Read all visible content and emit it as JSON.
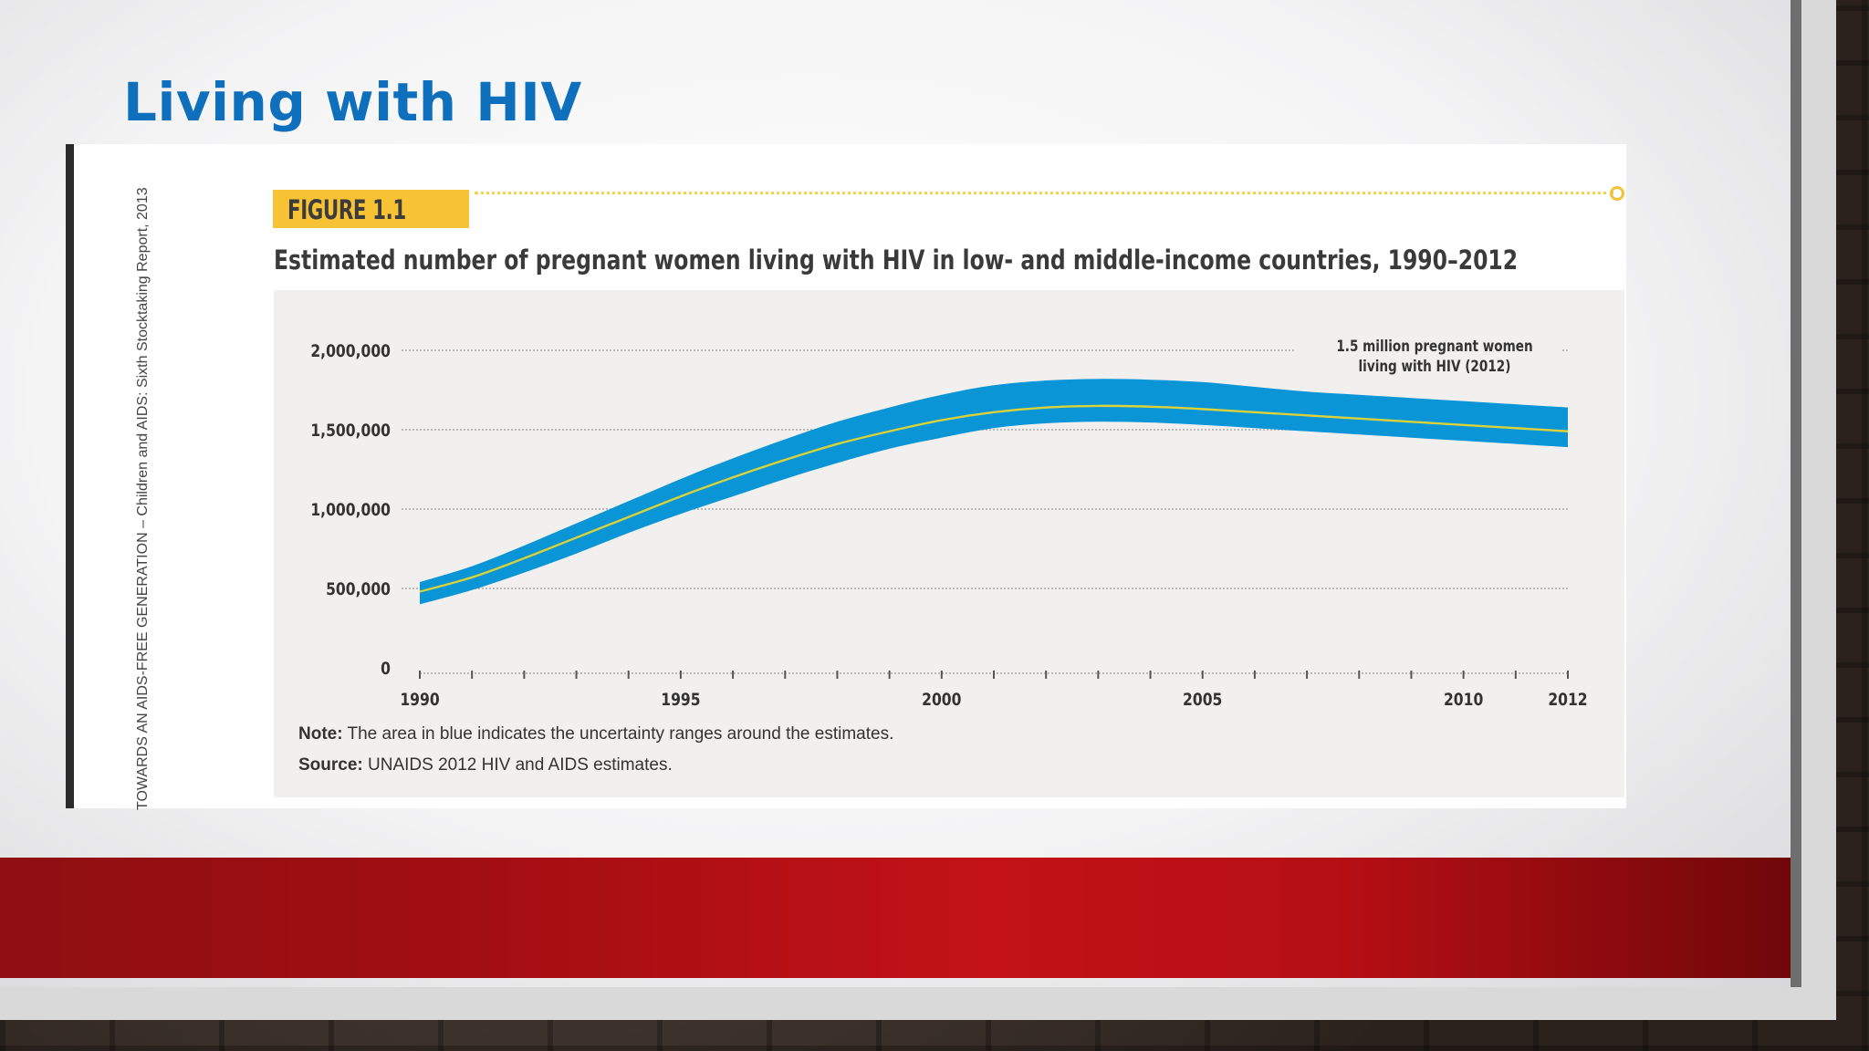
{
  "slide": {
    "title": "Living with HIV"
  },
  "figure": {
    "badge": "FIGURE 1.1",
    "title": "Estimated number of pregnant women living with HIV in low- and middle-income countries, 1990–2012",
    "side_text": "TOWARDS AN AIDS-FREE GENERATION – Children and AIDS: Sixth Stocktaking Report, 2013",
    "note_label": "Note:",
    "note_text": " The area in blue indicates the uncertainty ranges around the estimates.",
    "source_label": "Source:",
    "source_text": " UNAIDS 2012 HIV and AIDS estimates."
  },
  "colors": {
    "band": "#0a96d6",
    "estimate_line": "#d9d23a",
    "title_blue": "#0e6fbd"
  },
  "chart_data": {
    "type": "area",
    "title": "Estimated number of pregnant women living with HIV in low- and middle-income countries, 1990–2012",
    "xlabel": "",
    "ylabel": "",
    "xlim": [
      1990,
      2012
    ],
    "ylim": [
      0,
      2000000
    ],
    "grid": true,
    "x_ticks": [
      "1990",
      "1995",
      "2000",
      "2005",
      "2010",
      "2012"
    ],
    "y_ticks": [
      "0",
      "500,000",
      "1,000,000",
      "1,500,000",
      "2,000,000"
    ],
    "y_tick_values": [
      0,
      500000,
      1000000,
      1500000,
      2000000
    ],
    "x": [
      1990,
      1991,
      1992,
      1993,
      1994,
      1995,
      1996,
      1997,
      1998,
      1999,
      2000,
      2001,
      2002,
      2003,
      2004,
      2005,
      2006,
      2007,
      2008,
      2009,
      2010,
      2011,
      2012
    ],
    "series": [
      {
        "values": [
          480000,
          570000,
          690000,
          820000,
          950000,
          1080000,
          1200000,
          1310000,
          1410000,
          1490000,
          1560000,
          1610000,
          1640000,
          1650000,
          1645000,
          1630000,
          1610000,
          1590000,
          1570000,
          1550000,
          1530000,
          1510000,
          1490000
        ],
        "lower": [
          400000,
          490000,
          600000,
          720000,
          850000,
          970000,
          1080000,
          1190000,
          1290000,
          1380000,
          1450000,
          1510000,
          1540000,
          1550000,
          1545000,
          1530000,
          1510000,
          1490000,
          1470000,
          1450000,
          1430000,
          1410000,
          1390000
        ],
        "upper": [
          540000,
          640000,
          770000,
          910000,
          1050000,
          1190000,
          1320000,
          1440000,
          1550000,
          1640000,
          1720000,
          1780000,
          1810000,
          1820000,
          1815000,
          1800000,
          1770000,
          1740000,
          1720000,
          1700000,
          1680000,
          1660000,
          1640000
        ]
      }
    ],
    "annotations": [
      "1.5 million pregnant women",
      "living with HIV (2012)"
    ]
  }
}
